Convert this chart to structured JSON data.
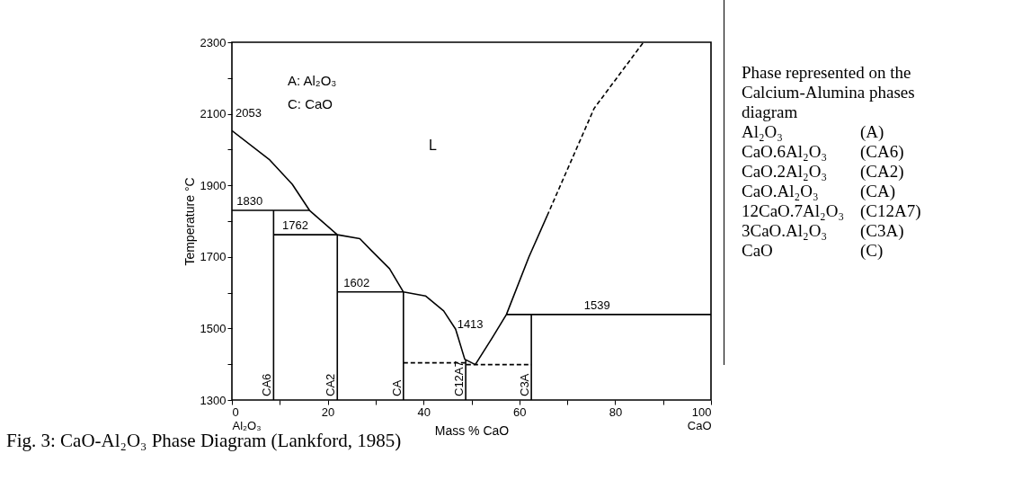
{
  "chart_data": {
    "type": "line",
    "xlabel": "Mass % CaO",
    "ylabel": "Temperature °C",
    "xlim": [
      0,
      100
    ],
    "ylim": [
      1300,
      2300
    ],
    "xticks": [
      {
        "value": 0,
        "label": "0\nAl₂O₃"
      },
      {
        "value": 10,
        "label": null
      },
      20,
      {
        "value": 30,
        "label": null
      },
      40,
      {
        "value": 50,
        "label": null
      },
      60,
      {
        "value": 70,
        "label": null
      },
      80,
      {
        "value": 90,
        "label": null
      },
      {
        "value": 100,
        "label": "100\nCaO"
      }
    ],
    "yticks": [
      1300,
      {
        "value": 1400,
        "label": null
      },
      1500,
      {
        "value": 1600,
        "label": null
      },
      1700,
      {
        "value": 1800,
        "label": null
      },
      1900,
      {
        "value": 2000,
        "label": null
      },
      2100,
      {
        "value": 2200,
        "label": null
      },
      2300
    ],
    "series": [
      {
        "color": "#000000",
        "x": [
          0,
          7.9,
          12.6,
          16.2,
          22,
          26.7,
          29.1,
          32.9,
          35.8,
          40.4,
          44.2,
          46.7,
          48.6,
          50.8
        ],
        "values": [
          2053,
          1971,
          1903,
          1830,
          1762,
          1751,
          1718,
          1667,
          1602,
          1591,
          1549,
          1498,
          1414,
          1399
        ]
      },
      {
        "color": "#000000",
        "x": [
          50.8,
          54.3,
          57.3,
          62,
          65.8
        ],
        "values": [
          1399,
          1473,
          1539,
          1700,
          1815
        ]
      },
      {
        "color": "#000000",
        "line_style": "dashed",
        "x": [
          65.8,
          75.6,
          85.9
        ],
        "values": [
          1815,
          2115,
          2300
        ]
      },
      {
        "color": "#000000",
        "x": [
          0,
          16.2
        ],
        "values": [
          1830,
          1830
        ]
      },
      {
        "color": "#000000",
        "x": [
          8.7,
          22
        ],
        "values": [
          1762,
          1762
        ]
      },
      {
        "color": "#000000",
        "x": [
          22,
          35.8
        ],
        "values": [
          1602,
          1602
        ]
      },
      {
        "color": "#000000",
        "line_style": "dashed",
        "x": [
          35.8,
          48.8,
          48.8,
          62.5
        ],
        "values": [
          1404,
          1404,
          1399,
          1399
        ]
      },
      {
        "color": "#000000",
        "x": [
          57.3,
          100
        ],
        "values": [
          1539,
          1539
        ]
      },
      {
        "color": "#000000",
        "x": [
          8.7,
          8.7
        ],
        "values": [
          1300,
          1830
        ]
      },
      {
        "color": "#000000",
        "x": [
          22,
          22
        ],
        "values": [
          1300,
          1762
        ]
      },
      {
        "color": "#000000",
        "x": [
          35.8,
          35.8
        ],
        "values": [
          1300,
          1602
        ]
      },
      {
        "color": "#000000",
        "x": [
          48.8,
          48.8
        ],
        "values": [
          1300,
          1413
        ]
      },
      {
        "color": "#000000",
        "x": [
          62.5,
          62.5
        ],
        "values": [
          1300,
          1539
        ]
      }
    ],
    "annotations": [
      {
        "text": "2053",
        "x": 0,
        "y": 2053
      },
      {
        "text": "1830",
        "x": 1,
        "y": 1830
      },
      {
        "text": "1762",
        "x": 10.5,
        "y": 1762
      },
      {
        "text": "1602",
        "x": 23.3,
        "y": 1602
      },
      {
        "text": "1413",
        "x": 48.8,
        "y": 1413
      },
      {
        "text": "1539",
        "x": 73.5,
        "y": 1539
      },
      {
        "text": "CA6",
        "x": 8.7,
        "y": 1300
      },
      {
        "text": "CA2",
        "x": 22,
        "y": 1300
      },
      {
        "text": "CA",
        "x": 35.8,
        "y": 1300
      },
      {
        "text": "C12A7",
        "x": 48.8,
        "y": 1300
      },
      {
        "text": "C3A",
        "x": 62.5,
        "y": 1300
      },
      "A: Al₂O₃",
      "C: CaO",
      "L",
      "Phase represented on the Calcium-Alumina phases diagram",
      "Al₂O₃\t(A)",
      "CaO.6Al₂O₃\t(CA6)",
      "CaO.2Al₂O₃\t(CA2)",
      "CaO.Al₂O₃\t(CA)",
      "12CaO.7Al₂O₃\t(C12A7)",
      "3CaO.Al₂O₃\t(C3A)",
      "CaO\t(C)",
      "Fig. 3: CaO-Al₂O₃ Phase Diagram (Lankford, 1985)"
    ]
  }
}
